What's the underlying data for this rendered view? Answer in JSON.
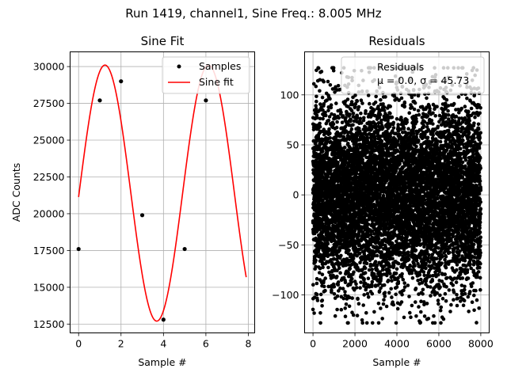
{
  "figure": {
    "suptitle": "Run 1419, channel1, Sine Freq.: 8.005 MHz"
  },
  "chart_data": [
    {
      "type": "line",
      "title": "Sine Fit",
      "xlabel": "Sample #",
      "ylabel": "ADC Counts",
      "xlim": [
        -0.4,
        8.3
      ],
      "ylim": [
        11900,
        31000
      ],
      "xticks": [
        0,
        2,
        4,
        6,
        8
      ],
      "yticks": [
        12500,
        15000,
        17500,
        20000,
        22500,
        25000,
        27500,
        30000
      ],
      "xtick_labels": [
        "0",
        "2",
        "4",
        "6",
        "8"
      ],
      "ytick_labels": [
        "12500",
        "15000",
        "17500",
        "20000",
        "22500",
        "25000",
        "27500",
        "30000"
      ],
      "grid": true,
      "legend_position": "top-right",
      "series": [
        {
          "name": "Samples",
          "kind": "scatter",
          "color": "#000000",
          "x": [
            0,
            1,
            2,
            3,
            4,
            5,
            6,
            7
          ],
          "y": [
            17600,
            27700,
            29000,
            19900,
            12800,
            17600,
            27700,
            29000
          ]
        },
        {
          "name": "Sine fit",
          "kind": "line",
          "color": "#ff0000",
          "model": {
            "offset": 21400,
            "amplitude": 8700,
            "period": 4.88,
            "phase": -0.0306,
            "x_start": 0,
            "x_end": 7.9
          }
        }
      ]
    },
    {
      "type": "scatter",
      "title": "Residuals",
      "xlabel": "Sample #",
      "ylabel": "",
      "xlim": [
        -400,
        8400
      ],
      "ylim": [
        -138,
        143
      ],
      "xticks": [
        0,
        2000,
        4000,
        6000,
        8000
      ],
      "yticks": [
        -100,
        -50,
        0,
        50,
        100
      ],
      "xtick_labels": [
        "0",
        "2000",
        "4000",
        "6000",
        "8000"
      ],
      "ytick_labels": [
        "−100",
        "−50",
        "0",
        "50",
        "100"
      ],
      "grid": true,
      "legend_position": "top-right",
      "legend_lines": [
        "Residuals",
        "μ = 0.0, σ = 45.73"
      ],
      "series": [
        {
          "name": "Residuals",
          "color": "#000000",
          "n_points": 8000,
          "mean": 0.0,
          "sigma": 45.73,
          "x_range": [
            0,
            7999
          ],
          "y_range": [
            -128,
            127
          ]
        }
      ]
    }
  ]
}
